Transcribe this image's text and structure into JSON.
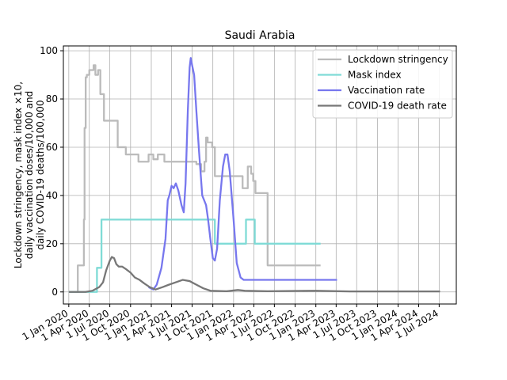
{
  "chart_data": {
    "type": "line",
    "title": "Saudi Arabia",
    "ylabel_lines": [
      "Lockdown stringency, mask index ×10,",
      "daily vaccination doses/10,000 and",
      "daily COVID-19 deaths/100,000"
    ],
    "xlabel": "",
    "ylim": [
      -5,
      102
    ],
    "xlim": [
      "2019-12-08",
      "2024-09-15"
    ],
    "yticks": [
      0,
      20,
      40,
      60,
      80,
      100
    ],
    "xticks": [
      {
        "date": "2020-01-01",
        "label": "1 Jan 2020"
      },
      {
        "date": "2020-04-01",
        "label": "1 Apr 2020"
      },
      {
        "date": "2020-07-01",
        "label": "1 Jul 2020"
      },
      {
        "date": "2020-10-01",
        "label": "1 Oct 2020"
      },
      {
        "date": "2021-01-01",
        "label": "1 Jan 2021"
      },
      {
        "date": "2021-04-01",
        "label": "1 Apr 2021"
      },
      {
        "date": "2021-07-01",
        "label": "1 Jul 2021"
      },
      {
        "date": "2021-10-01",
        "label": "1 Oct 2021"
      },
      {
        "date": "2022-01-01",
        "label": "1 Jan 2022"
      },
      {
        "date": "2022-04-01",
        "label": "1 Apr 2022"
      },
      {
        "date": "2022-07-01",
        "label": "1 Jul 2022"
      },
      {
        "date": "2022-10-01",
        "label": "1 Oct 2022"
      },
      {
        "date": "2023-01-01",
        "label": "1 Jan 2023"
      },
      {
        "date": "2023-04-01",
        "label": "1 Apr 2023"
      },
      {
        "date": "2023-07-01",
        "label": "1 Jul 2023"
      },
      {
        "date": "2023-10-01",
        "label": "1 Oct 2023"
      },
      {
        "date": "2024-01-01",
        "label": "1 Jan 2024"
      },
      {
        "date": "2024-04-01",
        "label": "1 Apr 2024"
      },
      {
        "date": "2024-07-01",
        "label": "1 Jul 2024"
      }
    ],
    "grid": true,
    "legend_position": "top-right",
    "series": [
      {
        "name": "Lockdown stringency",
        "color": "#bbbbbb",
        "step": true,
        "points": [
          [
            "2020-01-01",
            0
          ],
          [
            "2020-02-01",
            0
          ],
          [
            "2020-02-10",
            11
          ],
          [
            "2020-03-05",
            11
          ],
          [
            "2020-03-08",
            30
          ],
          [
            "2020-03-11",
            68
          ],
          [
            "2020-03-16",
            89
          ],
          [
            "2020-03-21",
            90
          ],
          [
            "2020-04-01",
            92
          ],
          [
            "2020-04-20",
            94
          ],
          [
            "2020-04-28",
            90
          ],
          [
            "2020-05-10",
            92
          ],
          [
            "2020-05-20",
            82
          ],
          [
            "2020-06-05",
            71
          ],
          [
            "2020-08-05",
            60
          ],
          [
            "2020-09-10",
            57
          ],
          [
            "2020-11-05",
            54
          ],
          [
            "2020-12-20",
            57
          ],
          [
            "2021-01-10",
            55
          ],
          [
            "2021-01-30",
            57
          ],
          [
            "2021-02-28",
            54
          ],
          [
            "2021-07-20",
            53
          ],
          [
            "2021-08-10",
            50
          ],
          [
            "2021-08-25",
            54
          ],
          [
            "2021-09-01",
            64
          ],
          [
            "2021-09-08",
            62
          ],
          [
            "2021-09-28",
            60
          ],
          [
            "2021-10-10",
            48
          ],
          [
            "2022-02-10",
            43
          ],
          [
            "2022-03-05",
            52
          ],
          [
            "2022-03-20",
            49
          ],
          [
            "2022-03-29",
            46
          ],
          [
            "2022-04-08",
            41
          ],
          [
            "2022-06-01",
            11
          ],
          [
            "2023-01-22",
            11
          ]
        ]
      },
      {
        "name": "Mask index",
        "color": "#7fdbd6",
        "step": true,
        "points": [
          [
            "2020-01-01",
            0
          ],
          [
            "2020-04-20",
            0
          ],
          [
            "2020-05-05",
            10
          ],
          [
            "2020-05-25",
            30
          ],
          [
            "2021-10-01",
            30
          ],
          [
            "2021-10-10",
            20
          ],
          [
            "2022-02-25",
            30
          ],
          [
            "2022-04-05",
            20
          ],
          [
            "2023-01-22",
            20
          ]
        ]
      },
      {
        "name": "Vaccination rate",
        "color": "#7777ee",
        "step": false,
        "points": [
          [
            "2020-12-20",
            2
          ],
          [
            "2021-01-10",
            1
          ],
          [
            "2021-01-25",
            3
          ],
          [
            "2021-02-15",
            10
          ],
          [
            "2021-03-05",
            22
          ],
          [
            "2021-03-15",
            38
          ],
          [
            "2021-03-22",
            40
          ],
          [
            "2021-04-01",
            44
          ],
          [
            "2021-04-10",
            43
          ],
          [
            "2021-04-20",
            45
          ],
          [
            "2021-05-01",
            42
          ],
          [
            "2021-05-15",
            36
          ],
          [
            "2021-05-25",
            33
          ],
          [
            "2021-06-02",
            45
          ],
          [
            "2021-06-12",
            75
          ],
          [
            "2021-06-20",
            93
          ],
          [
            "2021-06-25",
            97
          ],
          [
            "2021-07-01",
            94
          ],
          [
            "2021-07-10",
            90
          ],
          [
            "2021-07-20",
            75
          ],
          [
            "2021-08-01",
            58
          ],
          [
            "2021-08-15",
            40
          ],
          [
            "2021-09-01",
            36
          ],
          [
            "2021-09-10",
            30
          ],
          [
            "2021-09-20",
            22
          ],
          [
            "2021-10-01",
            14
          ],
          [
            "2021-10-10",
            13
          ],
          [
            "2021-10-20",
            18
          ],
          [
            "2021-11-01",
            38
          ],
          [
            "2021-11-15",
            52
          ],
          [
            "2021-11-25",
            57
          ],
          [
            "2021-12-05",
            57
          ],
          [
            "2021-12-15",
            50
          ],
          [
            "2022-01-01",
            30
          ],
          [
            "2022-01-15",
            12
          ],
          [
            "2022-02-01",
            6
          ],
          [
            "2022-02-15",
            5
          ],
          [
            "2023-04-05",
            5
          ]
        ]
      },
      {
        "name": "COVID-19 death rate",
        "color": "#777777",
        "step": false,
        "points": [
          [
            "2020-01-01",
            0
          ],
          [
            "2020-03-15",
            0
          ],
          [
            "2020-04-15",
            0.5
          ],
          [
            "2020-05-15",
            2
          ],
          [
            "2020-06-01",
            4
          ],
          [
            "2020-06-15",
            9
          ],
          [
            "2020-07-01",
            13
          ],
          [
            "2020-07-10",
            14.5
          ],
          [
            "2020-07-20",
            14
          ],
          [
            "2020-07-30",
            11.5
          ],
          [
            "2020-08-10",
            10.5
          ],
          [
            "2020-08-25",
            10.5
          ],
          [
            "2020-09-10",
            9.5
          ],
          [
            "2020-10-01",
            8
          ],
          [
            "2020-10-20",
            6
          ],
          [
            "2020-11-10",
            5
          ],
          [
            "2020-12-01",
            3.5
          ],
          [
            "2020-12-25",
            2
          ],
          [
            "2021-01-20",
            1
          ],
          [
            "2021-02-20",
            2
          ],
          [
            "2021-03-20",
            3
          ],
          [
            "2021-04-20",
            4
          ],
          [
            "2021-05-20",
            5
          ],
          [
            "2021-06-20",
            4.5
          ],
          [
            "2021-07-20",
            3
          ],
          [
            "2021-08-20",
            1.5
          ],
          [
            "2021-09-20",
            0.5
          ],
          [
            "2021-12-01",
            0.3
          ],
          [
            "2022-01-20",
            0.8
          ],
          [
            "2022-02-20",
            0.5
          ],
          [
            "2022-06-01",
            0.3
          ],
          [
            "2023-01-01",
            0.5
          ],
          [
            "2023-06-01",
            0.2
          ],
          [
            "2024-07-05",
            0.2
          ]
        ]
      }
    ]
  }
}
